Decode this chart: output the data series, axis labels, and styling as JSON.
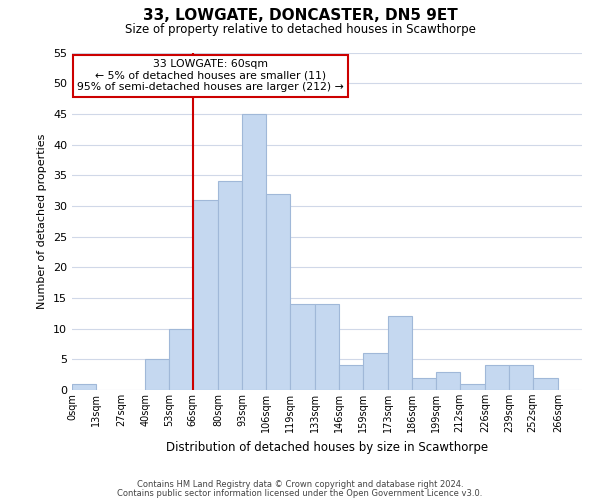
{
  "title": "33, LOWGATE, DONCASTER, DN5 9ET",
  "subtitle": "Size of property relative to detached houses in Scawthorpe",
  "xlabel": "Distribution of detached houses by size in Scawthorpe",
  "ylabel": "Number of detached properties",
  "bin_labels": [
    "0sqm",
    "13sqm",
    "27sqm",
    "40sqm",
    "53sqm",
    "66sqm",
    "80sqm",
    "93sqm",
    "106sqm",
    "119sqm",
    "133sqm",
    "146sqm",
    "159sqm",
    "173sqm",
    "186sqm",
    "199sqm",
    "212sqm",
    "226sqm",
    "239sqm",
    "252sqm",
    "266sqm"
  ],
  "bin_edges": [
    0,
    13,
    27,
    40,
    53,
    66,
    80,
    93,
    106,
    119,
    133,
    146,
    159,
    173,
    186,
    199,
    212,
    226,
    239,
    252,
    266,
    279
  ],
  "bar_heights": [
    1,
    0,
    0,
    5,
    10,
    31,
    34,
    45,
    32,
    14,
    14,
    4,
    6,
    12,
    2,
    3,
    1,
    4,
    4,
    2,
    0
  ],
  "bar_color": "#c5d8f0",
  "bar_edge_color": "#a0b8d8",
  "red_line_x": 66,
  "ylim": [
    0,
    55
  ],
  "yticks": [
    0,
    5,
    10,
    15,
    20,
    25,
    30,
    35,
    40,
    45,
    50,
    55
  ],
  "annotation_line1": "33 LOWGATE: 60sqm",
  "annotation_line2": "← 5% of detached houses are smaller (11)",
  "annotation_line3": "95% of semi-detached houses are larger (212) →",
  "annotation_box_color": "#ffffff",
  "annotation_box_edge": "#cc0000",
  "footer_line1": "Contains HM Land Registry data © Crown copyright and database right 2024.",
  "footer_line2": "Contains public sector information licensed under the Open Government Licence v3.0.",
  "background_color": "#ffffff",
  "grid_color": "#d0d8e8"
}
